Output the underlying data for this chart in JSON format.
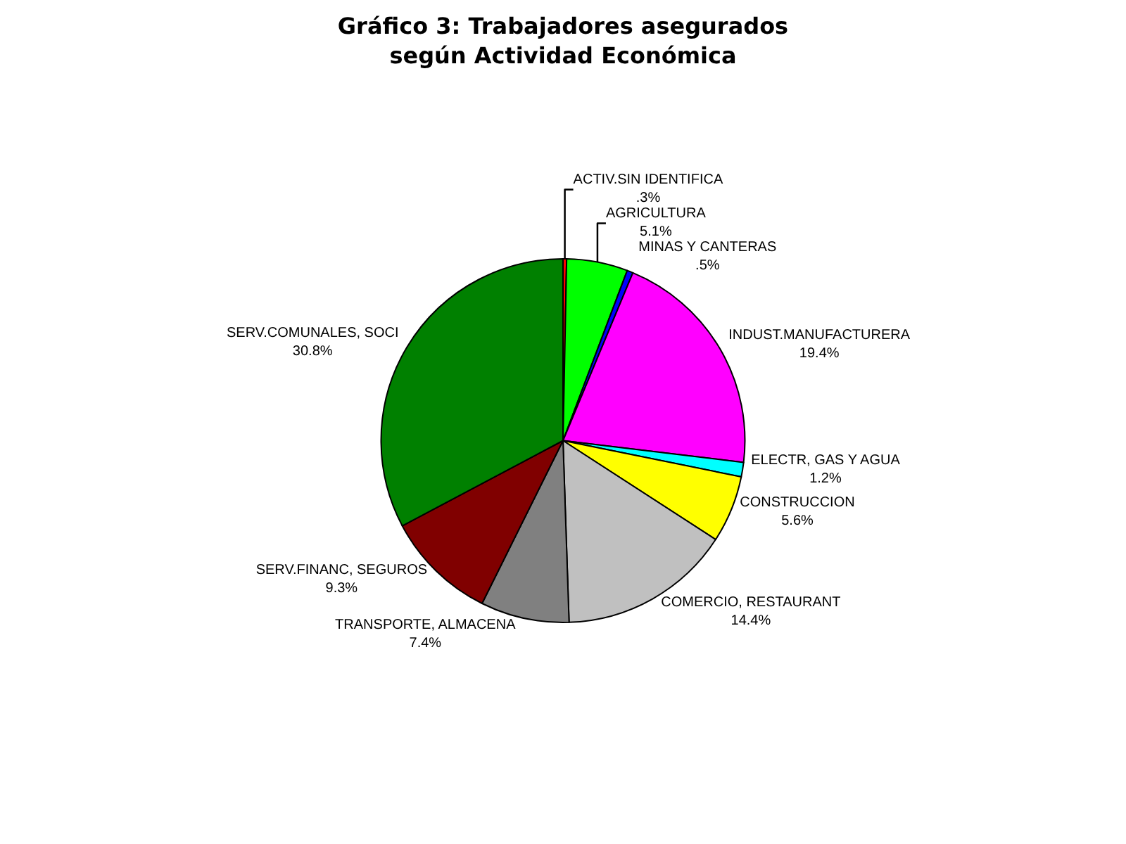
{
  "chart_data": {
    "type": "pie",
    "title": "Gráfico 3: Trabajadores asegurados\nsegún Actividad Económica",
    "categories": [
      "ACTIV.SIN IDENTIFICA",
      "AGRICULTURA",
      "MINAS Y CANTERAS",
      "INDUST.MANUFACTURERA",
      "ELECTR, GAS Y AGUA",
      "CONSTRUCCION",
      "COMERCIO, RESTAURANT",
      "TRANSPORTE, ALMACENA",
      "SERV.FINANC, SEGUROS",
      "SERV.COMUNALES, SOCI"
    ],
    "values": [
      0.3,
      5.1,
      0.5,
      19.4,
      1.2,
      5.6,
      14.4,
      7.4,
      9.3,
      30.8
    ],
    "value_labels": [
      ".3%",
      "5.1%",
      ".5%",
      "19.4%",
      "1.2%",
      "5.6%",
      "14.4%",
      "7.4%",
      "9.3%",
      "30.8%"
    ],
    "colors": [
      "#ff0000",
      "#00ff00",
      "#0000ff",
      "#ff00ff",
      "#00ffff",
      "#ffff00",
      "#c0c0c0",
      "#808080",
      "#800000",
      "#008000"
    ],
    "legend": false
  }
}
